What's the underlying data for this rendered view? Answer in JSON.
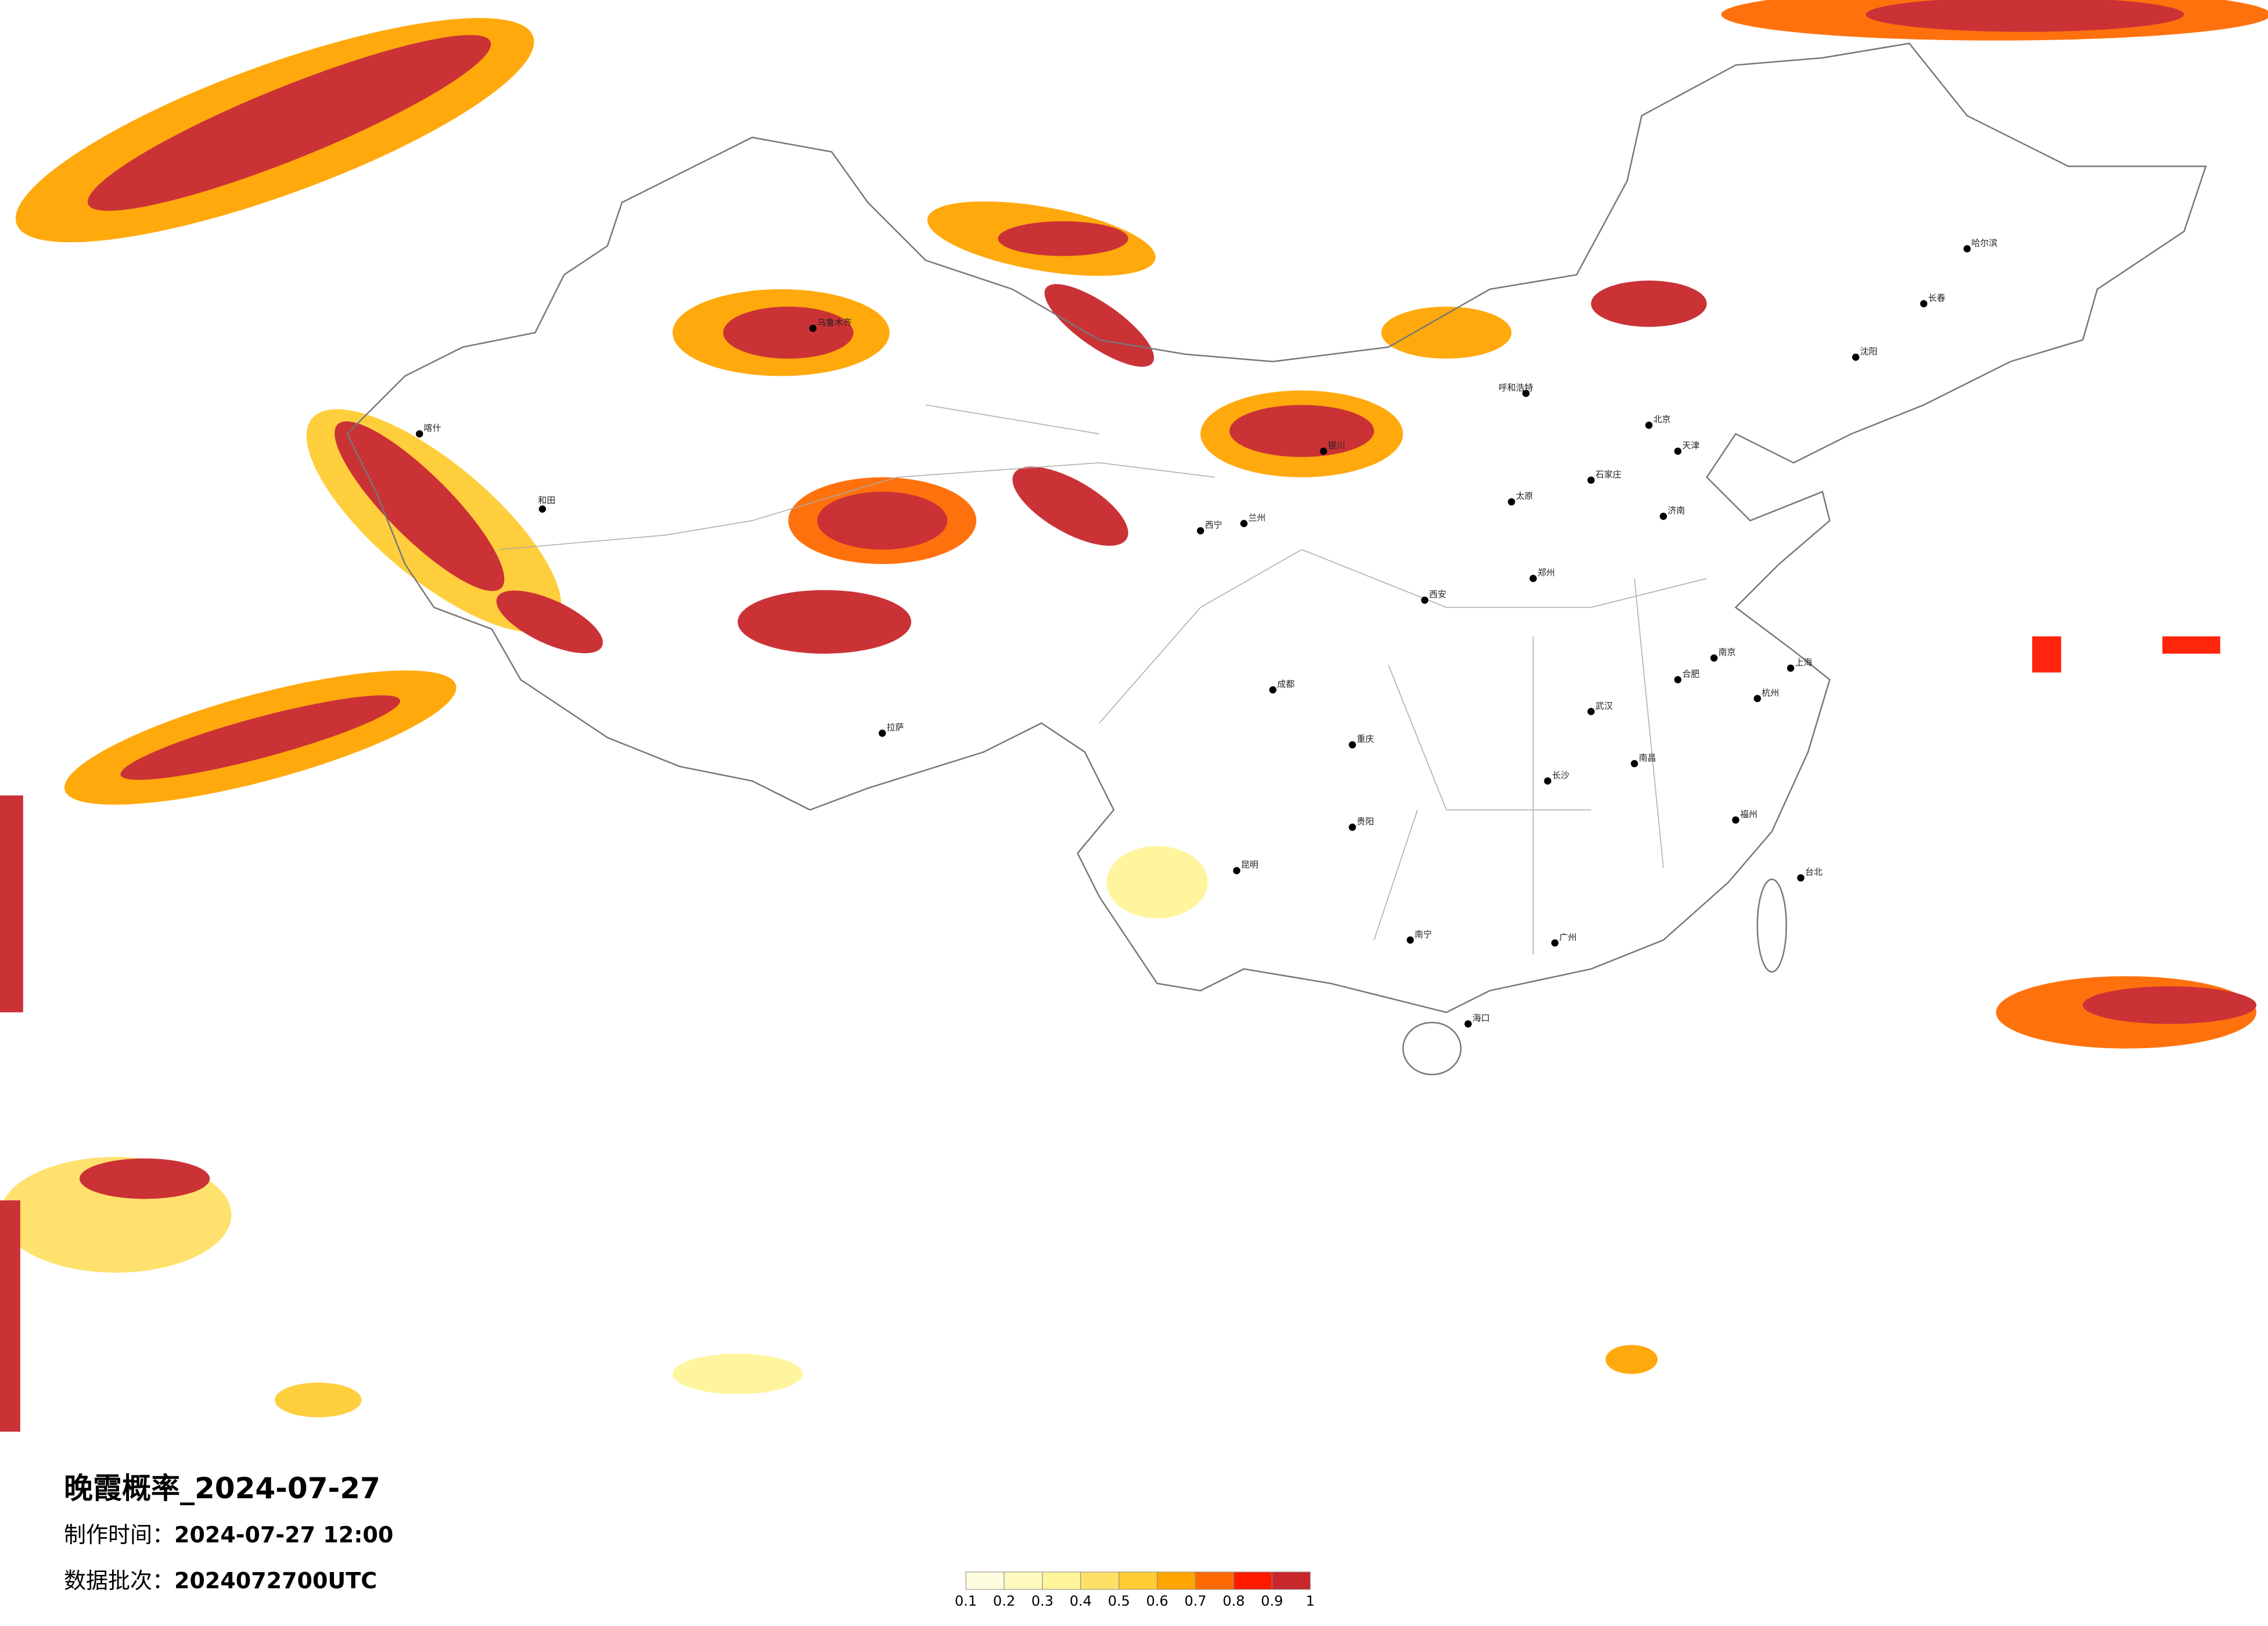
{
  "title": "晚霞概率_2024-07-27",
  "made_time": {
    "label": "制作时间：",
    "value": "2024-07-27 12:00"
  },
  "batch": {
    "label": "数据批次：",
    "value": "2024072700UTC"
  },
  "legend": {
    "ticks": [
      0.1,
      0.2,
      0.3,
      0.4,
      0.5,
      0.6,
      0.7,
      0.8,
      0.9,
      1
    ],
    "colors": [
      "#fffde0",
      "#fffac0",
      "#fff59a",
      "#ffe066",
      "#ffcc33",
      "#ffa500",
      "#ff6a00",
      "#ff1a00",
      "#c8282c"
    ]
  },
  "cities": [
    {
      "name": "北京"
    },
    {
      "name": "天津"
    },
    {
      "name": "上海"
    },
    {
      "name": "武汉"
    },
    {
      "name": "广州"
    },
    {
      "name": "重庆"
    },
    {
      "name": "成都"
    },
    {
      "name": "西安"
    },
    {
      "name": "兰州"
    },
    {
      "name": "乌鲁木齐"
    },
    {
      "name": "拉萨"
    },
    {
      "name": "哈尔滨"
    },
    {
      "name": "长春"
    },
    {
      "name": "沈阳"
    },
    {
      "name": "呼和浩特"
    },
    {
      "name": "昆明"
    },
    {
      "name": "南宁"
    },
    {
      "name": "海口"
    },
    {
      "name": "台北"
    },
    {
      "name": "长沙"
    },
    {
      "name": "南昌"
    },
    {
      "name": "福州"
    },
    {
      "name": "杭州"
    },
    {
      "name": "南京"
    },
    {
      "name": "郑州"
    },
    {
      "name": "济南"
    },
    {
      "name": "石家庄"
    },
    {
      "name": "太原"
    },
    {
      "name": "银川"
    },
    {
      "name": "西宁"
    },
    {
      "name": "贵阳"
    },
    {
      "name": "合肥"
    },
    {
      "name": "喀什"
    },
    {
      "name": "和田"
    }
  ]
}
